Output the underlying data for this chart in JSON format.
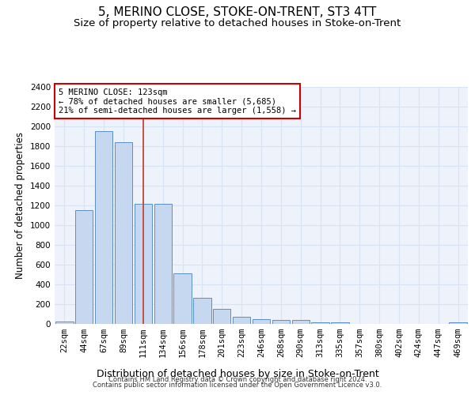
{
  "title": "5, MERINO CLOSE, STOKE-ON-TRENT, ST3 4TT",
  "subtitle": "Size of property relative to detached houses in Stoke-on-Trent",
  "xlabel": "Distribution of detached houses by size in Stoke-on-Trent",
  "ylabel": "Number of detached properties",
  "footer_line1": "Contains HM Land Registry data © Crown copyright and database right 2024.",
  "footer_line2": "Contains public sector information licensed under the Open Government Licence v3.0.",
  "annotation_title": "5 MERINO CLOSE: 123sqm",
  "annotation_line2": "← 78% of detached houses are smaller (5,685)",
  "annotation_line3": "21% of semi-detached houses are larger (1,558) →",
  "bar_color": "#c5d8f0",
  "bar_edge_color": "#5b8fc9",
  "vline_color": "#c0392b",
  "vline_x_index": 4,
  "categories": [
    "22sqm",
    "44sqm",
    "67sqm",
    "89sqm",
    "111sqm",
    "134sqm",
    "156sqm",
    "178sqm",
    "201sqm",
    "223sqm",
    "246sqm",
    "268sqm",
    "290sqm",
    "313sqm",
    "335sqm",
    "357sqm",
    "380sqm",
    "402sqm",
    "424sqm",
    "447sqm",
    "469sqm"
  ],
  "values": [
    25,
    1150,
    1950,
    1840,
    1215,
    1215,
    510,
    265,
    150,
    75,
    45,
    40,
    40,
    18,
    18,
    0,
    0,
    0,
    0,
    0,
    18
  ],
  "ylim": [
    0,
    2400
  ],
  "yticks": [
    0,
    200,
    400,
    600,
    800,
    1000,
    1200,
    1400,
    1600,
    1800,
    2000,
    2200,
    2400
  ],
  "background_color": "#edf2fb",
  "grid_color": "#d8e4f5",
  "title_fontsize": 11,
  "subtitle_fontsize": 9.5,
  "xlabel_fontsize": 9,
  "ylabel_fontsize": 8.5,
  "tick_fontsize": 7.5,
  "annotation_fontsize": 7.5,
  "footer_fontsize": 6
}
